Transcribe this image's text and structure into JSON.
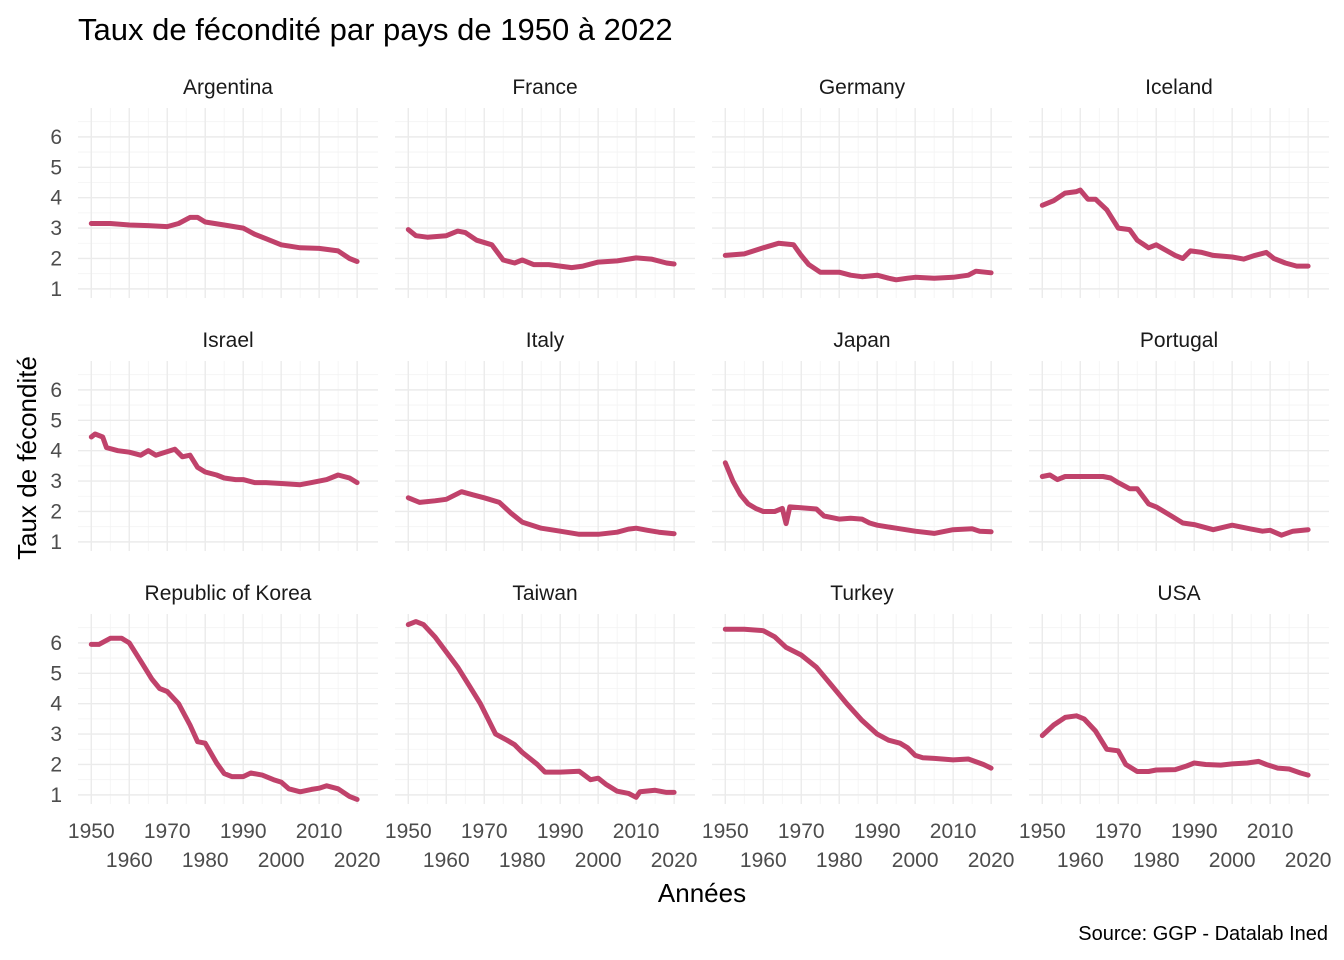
{
  "title": "Taux de fécondité par pays de 1950 à 2022",
  "caption": "Source: GGP - Datalab Ined",
  "colors": {
    "line": "#c0426b",
    "grid": "#ebebeb"
  },
  "chart_data": {
    "type": "line",
    "layout": "facet-grid 3x4",
    "xlabel": "Années",
    "ylabel": "Taux de fécondité",
    "xlim": [
      1950,
      2022
    ],
    "ylim": [
      1,
      6.6
    ],
    "x_ticks_upper": [
      "1950",
      "1970",
      "1990",
      "2010"
    ],
    "x_ticks_lower": [
      "1960",
      "1980",
      "2000",
      "2020"
    ],
    "y_ticks": [
      "1",
      "2",
      "3",
      "4",
      "5",
      "6"
    ],
    "grid": true,
    "panels": [
      {
        "name": "Argentina",
        "points": [
          [
            1950,
            3.15
          ],
          [
            1955,
            3.15
          ],
          [
            1960,
            3.1
          ],
          [
            1965,
            3.08
          ],
          [
            1970,
            3.05
          ],
          [
            1973,
            3.15
          ],
          [
            1976,
            3.35
          ],
          [
            1978,
            3.35
          ],
          [
            1980,
            3.2
          ],
          [
            1985,
            3.1
          ],
          [
            1990,
            3.0
          ],
          [
            1993,
            2.8
          ],
          [
            1996,
            2.65
          ],
          [
            2000,
            2.45
          ],
          [
            2005,
            2.35
          ],
          [
            2010,
            2.33
          ],
          [
            2015,
            2.25
          ],
          [
            2018,
            2.0
          ],
          [
            2020,
            1.9
          ]
        ]
      },
      {
        "name": "France",
        "points": [
          [
            1950,
            2.95
          ],
          [
            1952,
            2.75
          ],
          [
            1955,
            2.7
          ],
          [
            1960,
            2.75
          ],
          [
            1963,
            2.9
          ],
          [
            1965,
            2.85
          ],
          [
            1968,
            2.6
          ],
          [
            1972,
            2.45
          ],
          [
            1975,
            1.95
          ],
          [
            1978,
            1.85
          ],
          [
            1980,
            1.95
          ],
          [
            1983,
            1.8
          ],
          [
            1987,
            1.8
          ],
          [
            1990,
            1.75
          ],
          [
            1993,
            1.7
          ],
          [
            1996,
            1.75
          ],
          [
            2000,
            1.88
          ],
          [
            2005,
            1.92
          ],
          [
            2010,
            2.02
          ],
          [
            2014,
            1.98
          ],
          [
            2018,
            1.85
          ],
          [
            2020,
            1.82
          ]
        ]
      },
      {
        "name": "Germany",
        "points": [
          [
            1950,
            2.1
          ],
          [
            1955,
            2.15
          ],
          [
            1960,
            2.35
          ],
          [
            1964,
            2.5
          ],
          [
            1968,
            2.45
          ],
          [
            1970,
            2.1
          ],
          [
            1972,
            1.8
          ],
          [
            1975,
            1.55
          ],
          [
            1980,
            1.55
          ],
          [
            1983,
            1.45
          ],
          [
            1986,
            1.4
          ],
          [
            1990,
            1.45
          ],
          [
            1993,
            1.35
          ],
          [
            1995,
            1.3
          ],
          [
            1998,
            1.35
          ],
          [
            2000,
            1.38
          ],
          [
            2005,
            1.35
          ],
          [
            2010,
            1.38
          ],
          [
            2014,
            1.45
          ],
          [
            2016,
            1.58
          ],
          [
            2020,
            1.53
          ]
        ]
      },
      {
        "name": "Iceland",
        "points": [
          [
            1950,
            3.75
          ],
          [
            1953,
            3.9
          ],
          [
            1956,
            4.15
          ],
          [
            1959,
            4.2
          ],
          [
            1960,
            4.25
          ],
          [
            1962,
            3.95
          ],
          [
            1964,
            3.95
          ],
          [
            1967,
            3.6
          ],
          [
            1970,
            3.0
          ],
          [
            1973,
            2.95
          ],
          [
            1975,
            2.6
          ],
          [
            1978,
            2.35
          ],
          [
            1980,
            2.45
          ],
          [
            1985,
            2.1
          ],
          [
            1987,
            2.0
          ],
          [
            1989,
            2.25
          ],
          [
            1992,
            2.2
          ],
          [
            1995,
            2.1
          ],
          [
            2000,
            2.05
          ],
          [
            2003,
            1.98
          ],
          [
            2006,
            2.1
          ],
          [
            2009,
            2.2
          ],
          [
            2011,
            2.0
          ],
          [
            2014,
            1.85
          ],
          [
            2017,
            1.75
          ],
          [
            2020,
            1.75
          ]
        ]
      },
      {
        "name": "Israel",
        "points": [
          [
            1950,
            4.45
          ],
          [
            1951,
            4.55
          ],
          [
            1953,
            4.45
          ],
          [
            1954,
            4.1
          ],
          [
            1957,
            4.0
          ],
          [
            1960,
            3.95
          ],
          [
            1963,
            3.85
          ],
          [
            1965,
            4.0
          ],
          [
            1967,
            3.85
          ],
          [
            1970,
            3.97
          ],
          [
            1972,
            4.05
          ],
          [
            1974,
            3.8
          ],
          [
            1976,
            3.85
          ],
          [
            1978,
            3.45
          ],
          [
            1980,
            3.3
          ],
          [
            1983,
            3.2
          ],
          [
            1985,
            3.1
          ],
          [
            1988,
            3.05
          ],
          [
            1990,
            3.05
          ],
          [
            1993,
            2.95
          ],
          [
            1996,
            2.95
          ],
          [
            2000,
            2.92
          ],
          [
            2005,
            2.88
          ],
          [
            2008,
            2.95
          ],
          [
            2012,
            3.05
          ],
          [
            2015,
            3.2
          ],
          [
            2018,
            3.1
          ],
          [
            2020,
            2.95
          ]
        ]
      },
      {
        "name": "Italy",
        "points": [
          [
            1950,
            2.45
          ],
          [
            1953,
            2.3
          ],
          [
            1957,
            2.35
          ],
          [
            1960,
            2.4
          ],
          [
            1964,
            2.65
          ],
          [
            1967,
            2.55
          ],
          [
            1970,
            2.45
          ],
          [
            1974,
            2.3
          ],
          [
            1977,
            1.95
          ],
          [
            1980,
            1.65
          ],
          [
            1985,
            1.45
          ],
          [
            1990,
            1.35
          ],
          [
            1995,
            1.25
          ],
          [
            2000,
            1.25
          ],
          [
            2005,
            1.32
          ],
          [
            2008,
            1.42
          ],
          [
            2010,
            1.45
          ],
          [
            2013,
            1.38
          ],
          [
            2016,
            1.32
          ],
          [
            2020,
            1.27
          ]
        ]
      },
      {
        "name": "Japan",
        "points": [
          [
            1950,
            3.6
          ],
          [
            1952,
            3.0
          ],
          [
            1954,
            2.55
          ],
          [
            1956,
            2.25
          ],
          [
            1958,
            2.1
          ],
          [
            1960,
            2.0
          ],
          [
            1963,
            2.0
          ],
          [
            1965,
            2.1
          ],
          [
            1966,
            1.6
          ],
          [
            1967,
            2.15
          ],
          [
            1970,
            2.12
          ],
          [
            1974,
            2.08
          ],
          [
            1976,
            1.85
          ],
          [
            1980,
            1.75
          ],
          [
            1983,
            1.78
          ],
          [
            1986,
            1.75
          ],
          [
            1988,
            1.62
          ],
          [
            1990,
            1.55
          ],
          [
            1995,
            1.45
          ],
          [
            2000,
            1.35
          ],
          [
            2005,
            1.28
          ],
          [
            2010,
            1.4
          ],
          [
            2015,
            1.43
          ],
          [
            2017,
            1.35
          ],
          [
            2020,
            1.33
          ]
        ]
      },
      {
        "name": "Portugal",
        "points": [
          [
            1950,
            3.15
          ],
          [
            1952,
            3.2
          ],
          [
            1954,
            3.05
          ],
          [
            1956,
            3.15
          ],
          [
            1958,
            3.15
          ],
          [
            1962,
            3.15
          ],
          [
            1966,
            3.15
          ],
          [
            1968,
            3.1
          ],
          [
            1970,
            2.95
          ],
          [
            1973,
            2.75
          ],
          [
            1975,
            2.75
          ],
          [
            1978,
            2.25
          ],
          [
            1980,
            2.15
          ],
          [
            1984,
            1.85
          ],
          [
            1987,
            1.62
          ],
          [
            1990,
            1.57
          ],
          [
            1995,
            1.4
          ],
          [
            2000,
            1.55
          ],
          [
            2005,
            1.42
          ],
          [
            2008,
            1.35
          ],
          [
            2010,
            1.38
          ],
          [
            2013,
            1.22
          ],
          [
            2016,
            1.35
          ],
          [
            2020,
            1.4
          ]
        ]
      },
      {
        "name": "Republic of Korea",
        "points": [
          [
            1950,
            5.95
          ],
          [
            1952,
            5.95
          ],
          [
            1955,
            6.15
          ],
          [
            1958,
            6.15
          ],
          [
            1960,
            6.0
          ],
          [
            1963,
            5.4
          ],
          [
            1966,
            4.8
          ],
          [
            1968,
            4.5
          ],
          [
            1970,
            4.4
          ],
          [
            1973,
            4.0
          ],
          [
            1976,
            3.3
          ],
          [
            1978,
            2.75
          ],
          [
            1980,
            2.7
          ],
          [
            1983,
            2.05
          ],
          [
            1985,
            1.7
          ],
          [
            1987,
            1.6
          ],
          [
            1990,
            1.6
          ],
          [
            1992,
            1.72
          ],
          [
            1995,
            1.65
          ],
          [
            1998,
            1.5
          ],
          [
            2000,
            1.42
          ],
          [
            2002,
            1.2
          ],
          [
            2005,
            1.1
          ],
          [
            2008,
            1.18
          ],
          [
            2010,
            1.22
          ],
          [
            2012,
            1.3
          ],
          [
            2015,
            1.2
          ],
          [
            2018,
            0.95
          ],
          [
            2020,
            0.85
          ]
        ]
      },
      {
        "name": "Taiwan",
        "points": [
          [
            1950,
            6.6
          ],
          [
            1952,
            6.7
          ],
          [
            1954,
            6.6
          ],
          [
            1957,
            6.2
          ],
          [
            1960,
            5.7
          ],
          [
            1963,
            5.2
          ],
          [
            1966,
            4.6
          ],
          [
            1969,
            4.0
          ],
          [
            1971,
            3.5
          ],
          [
            1973,
            3.0
          ],
          [
            1976,
            2.8
          ],
          [
            1978,
            2.65
          ],
          [
            1980,
            2.4
          ],
          [
            1984,
            2.0
          ],
          [
            1986,
            1.75
          ],
          [
            1990,
            1.75
          ],
          [
            1995,
            1.78
          ],
          [
            1998,
            1.5
          ],
          [
            2000,
            1.55
          ],
          [
            2002,
            1.35
          ],
          [
            2005,
            1.12
          ],
          [
            2008,
            1.05
          ],
          [
            2010,
            0.92
          ],
          [
            2011,
            1.1
          ],
          [
            2015,
            1.15
          ],
          [
            2018,
            1.08
          ],
          [
            2020,
            1.08
          ]
        ]
      },
      {
        "name": "Turkey",
        "points": [
          [
            1950,
            6.45
          ],
          [
            1955,
            6.45
          ],
          [
            1960,
            6.4
          ],
          [
            1963,
            6.2
          ],
          [
            1966,
            5.85
          ],
          [
            1970,
            5.6
          ],
          [
            1974,
            5.2
          ],
          [
            1978,
            4.6
          ],
          [
            1982,
            4.0
          ],
          [
            1986,
            3.45
          ],
          [
            1990,
            3.0
          ],
          [
            1993,
            2.8
          ],
          [
            1996,
            2.7
          ],
          [
            1998,
            2.55
          ],
          [
            2000,
            2.3
          ],
          [
            2002,
            2.22
          ],
          [
            2005,
            2.2
          ],
          [
            2010,
            2.15
          ],
          [
            2014,
            2.18
          ],
          [
            2018,
            2.0
          ],
          [
            2020,
            1.88
          ]
        ]
      },
      {
        "name": "USA",
        "points": [
          [
            1950,
            2.95
          ],
          [
            1953,
            3.3
          ],
          [
            1956,
            3.55
          ],
          [
            1959,
            3.6
          ],
          [
            1961,
            3.5
          ],
          [
            1964,
            3.1
          ],
          [
            1967,
            2.5
          ],
          [
            1970,
            2.45
          ],
          [
            1972,
            2.0
          ],
          [
            1975,
            1.77
          ],
          [
            1978,
            1.77
          ],
          [
            1980,
            1.82
          ],
          [
            1985,
            1.83
          ],
          [
            1988,
            1.95
          ],
          [
            1990,
            2.05
          ],
          [
            1993,
            2.0
          ],
          [
            1997,
            1.98
          ],
          [
            2000,
            2.02
          ],
          [
            2004,
            2.05
          ],
          [
            2007,
            2.1
          ],
          [
            2009,
            2.0
          ],
          [
            2012,
            1.88
          ],
          [
            2015,
            1.85
          ],
          [
            2018,
            1.72
          ],
          [
            2020,
            1.65
          ]
        ]
      }
    ]
  }
}
